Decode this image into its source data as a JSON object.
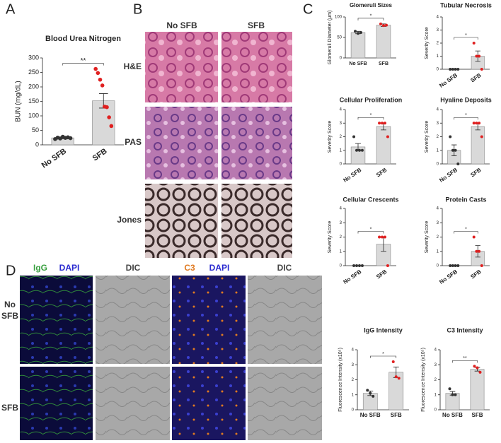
{
  "panel_letters": [
    "A",
    "B",
    "C",
    "D"
  ],
  "b_columns": [
    "No SFB",
    "SFB"
  ],
  "b_rows": [
    "H&E",
    "PAS",
    "Jones"
  ],
  "d_headers": [
    [
      "IgG",
      "DAPI"
    ],
    [
      "DIC"
    ],
    [
      "C3",
      "DAPI"
    ],
    [
      "DIC"
    ]
  ],
  "d_rows": [
    [
      "No",
      "SFB"
    ],
    [
      "SFB"
    ]
  ],
  "chart_data": [
    {
      "type": "bar",
      "title": "Blood Urea Nitrogen",
      "y_label": "BUN (mg/dL)",
      "categories": [
        "No SFB",
        "SFB"
      ],
      "values": [
        24,
        152
      ],
      "errors": [
        3,
        25
      ],
      "points": [
        [
          20,
          25,
          22,
          28,
          24,
          26,
          23
        ],
        [
          262,
          248,
          225,
          205,
          132,
          130,
          95,
          65
        ]
      ],
      "point_colors": [
        "#333333",
        "#e02020"
      ],
      "color": "#d9d9d9",
      "ylim": [
        0,
        300
      ],
      "yticks": [
        0,
        50,
        100,
        150,
        200,
        250,
        300
      ],
      "significance": "**"
    },
    {
      "type": "bar",
      "title": "Glomeruli Sizes",
      "y_label": "Glomeruli Diameter (μm)",
      "categories": [
        "No SFB",
        "SFB"
      ],
      "values": [
        62,
        80
      ],
      "errors": [
        3,
        3
      ],
      "points": [
        [
          65,
          60,
          62
        ],
        [
          83,
          79,
          80
        ]
      ],
      "point_colors": [
        "#333333",
        "#e02020"
      ],
      "color": "#d9d9d9",
      "ylim": [
        0,
        100
      ],
      "yticks": [
        0,
        50,
        100
      ],
      "significance": "*"
    },
    {
      "type": "bar",
      "title": "Tubular Necrosis",
      "y_label": "Severity Score",
      "categories": [
        "No SFB",
        "SFB"
      ],
      "values": [
        0,
        1
      ],
      "errors": [
        0,
        0.4
      ],
      "points": [
        [
          0,
          0,
          0,
          0
        ],
        [
          2,
          1,
          1,
          0
        ]
      ],
      "point_colors": [
        "#333333",
        "#e02020"
      ],
      "color": "#d9d9d9",
      "ylim": [
        0,
        4
      ],
      "yticks": [
        0,
        1,
        2,
        3,
        4
      ],
      "significance": "*"
    },
    {
      "type": "bar",
      "title": "Cellular Proliferation",
      "y_label": "Severity Score",
      "categories": [
        "No SFB",
        "SFB"
      ],
      "values": [
        1.25,
        2.75
      ],
      "errors": [
        0.25,
        0.25
      ],
      "points": [
        [
          2,
          1,
          1,
          1
        ],
        [
          3,
          3,
          3,
          2
        ]
      ],
      "point_colors": [
        "#333333",
        "#e02020"
      ],
      "color": "#d9d9d9",
      "ylim": [
        0,
        4
      ],
      "yticks": [
        0,
        1,
        2,
        3,
        4
      ],
      "significance": "*"
    },
    {
      "type": "bar",
      "title": "Hyaline Deposits",
      "y_label": "Severity Score",
      "categories": [
        "No SFB",
        "SFB"
      ],
      "values": [
        1,
        2.75
      ],
      "errors": [
        0.4,
        0.25
      ],
      "points": [
        [
          2,
          1,
          1,
          0
        ],
        [
          3,
          3,
          3,
          2
        ]
      ],
      "point_colors": [
        "#333333",
        "#e02020"
      ],
      "color": "#d9d9d9",
      "ylim": [
        0,
        4
      ],
      "yticks": [
        0,
        1,
        2,
        3,
        4
      ],
      "significance": "*"
    },
    {
      "type": "bar",
      "title": "Cellular Crescents",
      "y_label": "Severity Score",
      "categories": [
        "No SFB",
        "SFB"
      ],
      "values": [
        0,
        1.5
      ],
      "errors": [
        0,
        0.5
      ],
      "points": [
        [
          0,
          0,
          0,
          0
        ],
        [
          2,
          2,
          2,
          0
        ]
      ],
      "point_colors": [
        "#333333",
        "#e02020"
      ],
      "color": "#d9d9d9",
      "ylim": [
        0,
        4
      ],
      "yticks": [
        0,
        1,
        2,
        3,
        4
      ],
      "significance": "*"
    },
    {
      "type": "bar",
      "title": "Protein Casts",
      "y_label": "Severity Score",
      "categories": [
        "No SFB",
        "SFB"
      ],
      "values": [
        0,
        1
      ],
      "errors": [
        0,
        0.4
      ],
      "points": [
        [
          0,
          0,
          0,
          0
        ],
        [
          2,
          1,
          1,
          0
        ]
      ],
      "point_colors": [
        "#333333",
        "#e02020"
      ],
      "color": "#d9d9d9",
      "ylim": [
        0,
        4
      ],
      "yticks": [
        0,
        1,
        2,
        3,
        4
      ],
      "significance": "*"
    },
    {
      "type": "bar",
      "title": "IgG Intensity",
      "y_label": "Fluorescence Intensity (x10⁵)",
      "categories": [
        "No SFB",
        "SFB"
      ],
      "values": [
        1.1,
        2.5
      ],
      "errors": [
        0.15,
        0.35
      ],
      "points": [
        [
          1.3,
          1.1,
          0.9
        ],
        [
          3.2,
          2.2,
          2.1
        ]
      ],
      "point_colors": [
        "#333333",
        "#e02020"
      ],
      "color": "#d9d9d9",
      "ylim": [
        0,
        4
      ],
      "yticks": [
        0,
        1,
        2,
        3,
        4
      ],
      "significance": "*"
    },
    {
      "type": "bar",
      "title": "C3 Intensity",
      "y_label": "Fluorescence Intensity (x10⁵)",
      "categories": [
        "No SFB",
        "SFB"
      ],
      "values": [
        1.1,
        2.7
      ],
      "errors": [
        0.12,
        0.12
      ],
      "points": [
        [
          1.4,
          1.0,
          1.0
        ],
        [
          2.9,
          2.8,
          2.5
        ]
      ],
      "point_colors": [
        "#333333",
        "#e02020"
      ],
      "color": "#d9d9d9",
      "ylim": [
        0,
        4
      ],
      "yticks": [
        0,
        1,
        2,
        3,
        4
      ],
      "significance": "**"
    }
  ]
}
